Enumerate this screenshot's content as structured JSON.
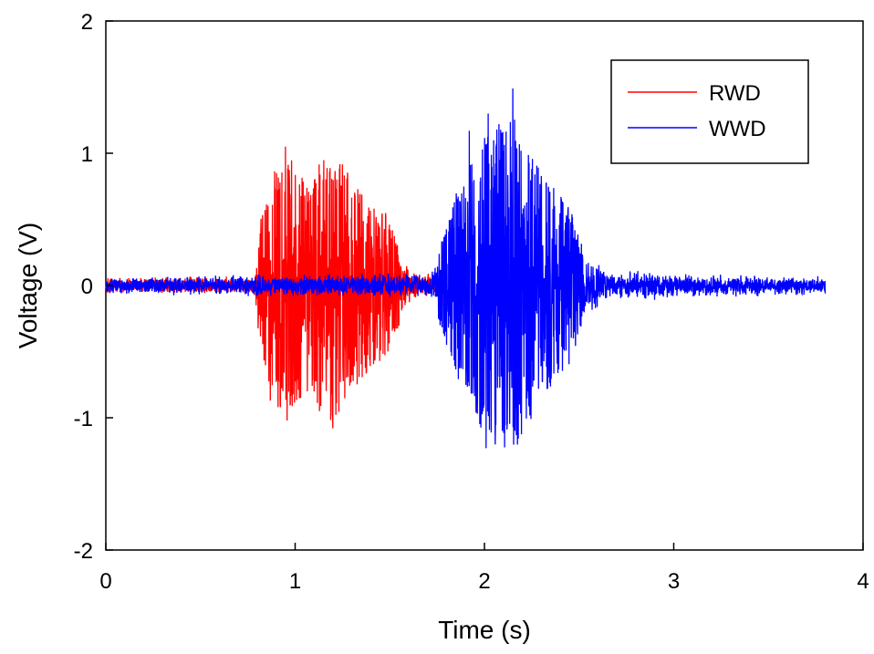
{
  "chart_data": {
    "type": "line",
    "title": "",
    "xlabel": "Time (s)",
    "ylabel": "Voltage (V)",
    "xlim": [
      0,
      4
    ],
    "ylim": [
      -2,
      2
    ],
    "xticks": [
      0,
      1,
      2,
      3,
      4
    ],
    "yticks": [
      -2,
      -1,
      0,
      1,
      2
    ],
    "grid": false,
    "legend_position": "top-right",
    "series": [
      {
        "name": "RWD",
        "color": "#ff0000",
        "duration": [
          0,
          1.75
        ],
        "envelope": [
          [
            0.0,
            0.07
          ],
          [
            0.78,
            0.07
          ],
          [
            0.82,
            0.55
          ],
          [
            0.9,
            0.9
          ],
          [
            0.95,
            1.05
          ],
          [
            1.05,
            0.8
          ],
          [
            1.2,
            1.05
          ],
          [
            1.35,
            0.7
          ],
          [
            1.48,
            0.55
          ],
          [
            1.55,
            0.3
          ],
          [
            1.62,
            0.12
          ],
          [
            1.75,
            0.08
          ]
        ],
        "peaks": [
          {
            "x": 0.95,
            "y": 1.05
          },
          {
            "x": 1.2,
            "y": 1.06
          },
          {
            "x": 1.2,
            "y": -1.08
          },
          {
            "x": 1.13,
            "y": -0.95
          },
          {
            "x": 1.03,
            "y": -0.85
          },
          {
            "x": 0.87,
            "y": -0.87
          }
        ]
      },
      {
        "name": "WWD",
        "color": "#0000ff",
        "duration": [
          0,
          3.8
        ],
        "envelope": [
          [
            0.0,
            0.07
          ],
          [
            1.72,
            0.1
          ],
          [
            1.78,
            0.4
          ],
          [
            1.85,
            0.7
          ],
          [
            1.95,
            1.0
          ],
          [
            2.02,
            1.2
          ],
          [
            2.15,
            1.3
          ],
          [
            2.3,
            0.85
          ],
          [
            2.45,
            0.6
          ],
          [
            2.52,
            0.28
          ],
          [
            2.65,
            0.12
          ],
          [
            3.8,
            0.07
          ]
        ],
        "peaks": [
          {
            "x": 2.15,
            "y": 1.49
          },
          {
            "x": 2.02,
            "y": 1.3
          },
          {
            "x": 2.01,
            "y": -1.23
          },
          {
            "x": 1.92,
            "y": 1.17
          },
          {
            "x": 2.12,
            "y": -1.05
          }
        ]
      }
    ]
  }
}
